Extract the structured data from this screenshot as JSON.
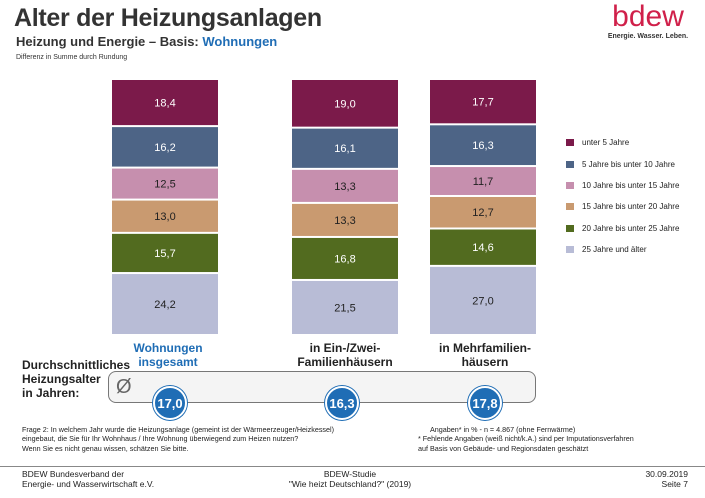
{
  "header": {
    "title": "Alter der Heizungsanlagen",
    "subtitle_prefix": "Heizung und Energie – Basis:",
    "subtitle_highlight": "Wohnungen",
    "note": "Differenz in Summe durch Rundung"
  },
  "logo": {
    "word": "bdew",
    "tagline": "Energie. Wasser. Leben."
  },
  "chart_data": {
    "type": "bar",
    "stacked": true,
    "unit": "%",
    "categories": [
      "Wohnungen insgesamt",
      "in Ein-/Zwei-Familienhäusern",
      "in Mehrfamilien-häusern"
    ],
    "category_lines": [
      [
        "Wohnungen",
        "insgesamt"
      ],
      [
        "in Ein-/Zwei-",
        "Familienhäusern"
      ],
      [
        "in Mehrfamilien-",
        "häusern"
      ]
    ],
    "highlighted_category": 0,
    "series": [
      {
        "name": "25 Jahre und älter",
        "color": "#b8bcd6",
        "values": [
          24.2,
          21.5,
          27.0
        ],
        "labels": [
          "24,2",
          "21,5",
          "27,0"
        ]
      },
      {
        "name": "20 Jahre bis unter 25 Jahre",
        "color": "#526b1f",
        "values": [
          15.7,
          16.8,
          14.6
        ],
        "labels": [
          "15,7",
          "16,8",
          "14,6"
        ]
      },
      {
        "name": "15 Jahre bis unter 20 Jahre",
        "color": "#c99a70",
        "values": [
          13.0,
          13.3,
          12.7
        ],
        "labels": [
          "13,0",
          "13,3",
          "12,7"
        ]
      },
      {
        "name": "10 Jahre bis unter 15 Jahre",
        "color": "#c68fae",
        "values": [
          12.5,
          13.3,
          11.7
        ],
        "labels": [
          "12,5",
          "13,3",
          "11,7"
        ]
      },
      {
        "name": "5 Jahre bis unter 10 Jahre",
        "color": "#4d6486",
        "values": [
          16.2,
          16.1,
          16.3
        ],
        "labels": [
          "16,2",
          "16,1",
          "16,3"
        ]
      },
      {
        "name": "unter 5 Jahre",
        "color": "#7b1a4a",
        "values": [
          18.4,
          19.0,
          17.7
        ],
        "labels": [
          "18,4",
          "19,0",
          "17,7"
        ]
      }
    ],
    "legend_order": [
      "unter 5 Jahre",
      "5 Jahre bis unter 10 Jahre",
      "10 Jahre bis unter 15 Jahre",
      "15 Jahre bis unter 20 Jahre",
      "20 Jahre bis unter 25 Jahre",
      "25 Jahre und älter"
    ],
    "legend_position": "right",
    "grid": false
  },
  "average": {
    "label_lines": [
      "Durchschnittliches",
      "Heizungsalter",
      "in Jahren:"
    ],
    "symbol": "Ø",
    "values": [
      "17,0",
      "16,3",
      "17,8"
    ]
  },
  "notes": {
    "question_lines": [
      "Frage 2: In welchem Jahr wurde die Heizungsanlage  (gemeint ist der Wärmeerzeuger/Heizkessel)",
      "eingebaut, die Sie für Ihr Wohnhaus / Ihre Wohnung überwiegend zum Heizen nutzen?",
      "Wenn Sie es nicht genau wissen, schätzen Sie bitte."
    ],
    "base": "Angaben* in % - n = 4.867  (ohne Fernwärme)",
    "footnote_lines": [
      "* Fehlende  Angaben  (weiß nicht/k.A.) sind per Imputationsverfahren",
      "auf Basis von Gebäude- und Regionsdaten  geschätzt"
    ]
  },
  "footer": {
    "left_lines": [
      "BDEW Bundesverband der",
      "Energie- und Wasserwirtschaft e.V."
    ],
    "center_lines": [
      "BDEW-Studie",
      "\"Wie heizt Deutschland?\" (2019)"
    ],
    "right_lines": [
      "30.09.2019",
      "Seite 7"
    ]
  }
}
